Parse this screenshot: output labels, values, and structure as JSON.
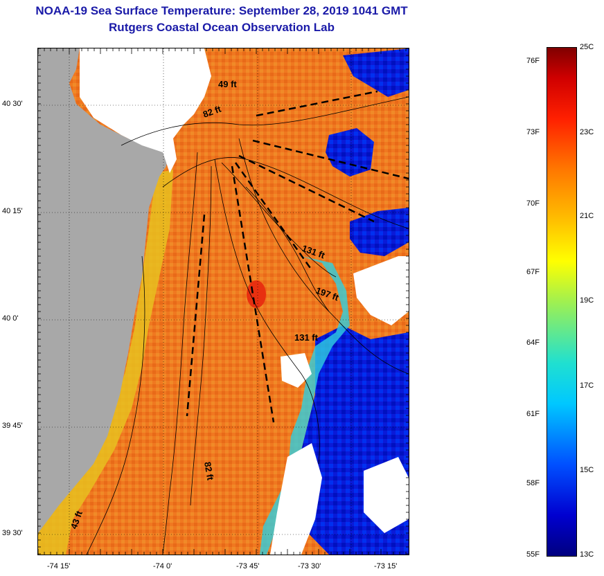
{
  "title": "NOAA-19 Sea Surface Temperature:  September 28, 2019 1041 GMT",
  "subtitle": "Rutgers Coastal Ocean Observation Lab",
  "map": {
    "lat_ticks": [
      "40 30'",
      "40 15'",
      "40 0'",
      "39 45'",
      "39 30'"
    ],
    "lon_ticks": [
      "-74 15'",
      "-74 0'",
      "-73 45'",
      "-73 30'",
      "-73 15'"
    ],
    "depth_labels": [
      "49 ft",
      "82 ft",
      "131 ft",
      "197 ft",
      "131 ft",
      "82 ft",
      "43 ft"
    ],
    "colors": {
      "land": "#a8a8a8",
      "no_data": "#ffffff",
      "warm_water": "#f07820",
      "cold_water": "#0a1ad8",
      "contour": "#000000"
    }
  },
  "colorbar": {
    "fahrenheit": [
      "76F",
      "73F",
      "70F",
      "67F",
      "64F",
      "61F",
      "58F",
      "55F"
    ],
    "celsius": [
      "25C",
      "23C",
      "21C",
      "19C",
      "17C",
      "15C",
      "13C"
    ],
    "min_c": 13,
    "max_c": 25,
    "min_f": 55,
    "max_f": 77
  }
}
